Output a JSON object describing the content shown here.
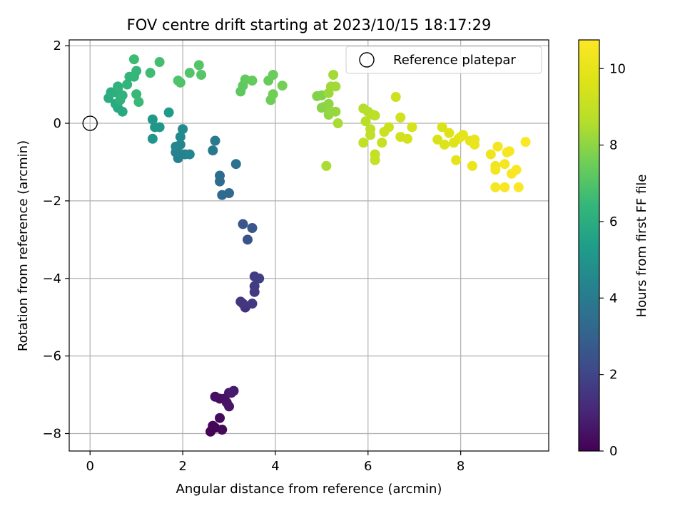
{
  "chart_data": {
    "type": "scatter",
    "title": "FOV centre drift starting at 2023/10/15 18:17:29",
    "xlabel": "Angular distance from reference (arcmin)",
    "ylabel": "Rotation from reference (arcmin)",
    "xlim": [
      -0.45,
      9.9
    ],
    "ylim": [
      -8.45,
      2.15
    ],
    "xticks": [
      0,
      2,
      4,
      6,
      8
    ],
    "yticks": [
      2,
      0,
      -2,
      -4,
      -6,
      -8
    ],
    "grid": true,
    "colormap": "viridis",
    "colorbar": {
      "label": "Hours from first FF file",
      "range": [
        0,
        10.75
      ],
      "ticks": [
        0,
        2,
        4,
        6,
        8,
        10
      ]
    },
    "legend": {
      "placement": "upper right",
      "entries": [
        "Reference platepar"
      ]
    },
    "reference_point": {
      "x": 0,
      "y": 0,
      "name": "Reference platepar"
    },
    "points": [
      {
        "x": 2.6,
        "y": -7.95,
        "c": 0.05
      },
      {
        "x": 2.7,
        "y": -7.85,
        "c": 0.1
      },
      {
        "x": 2.65,
        "y": -7.8,
        "c": 0.15
      },
      {
        "x": 2.85,
        "y": -7.9,
        "c": 0.2
      },
      {
        "x": 2.8,
        "y": -7.6,
        "c": 0.25
      },
      {
        "x": 2.8,
        "y": -7.1,
        "c": 0.35
      },
      {
        "x": 2.7,
        "y": -7.05,
        "c": 0.4
      },
      {
        "x": 2.9,
        "y": -7.1,
        "c": 0.45
      },
      {
        "x": 2.95,
        "y": -7.2,
        "c": 0.5
      },
      {
        "x": 3.0,
        "y": -7.3,
        "c": 0.55
      },
      {
        "x": 3.0,
        "y": -6.95,
        "c": 0.6
      },
      {
        "x": 3.1,
        "y": -6.9,
        "c": 0.65
      },
      {
        "x": 3.05,
        "y": -6.95,
        "c": 0.7
      },
      {
        "x": 3.35,
        "y": -4.75,
        "c": 1.4
      },
      {
        "x": 3.25,
        "y": -4.6,
        "c": 1.5
      },
      {
        "x": 3.3,
        "y": -4.65,
        "c": 1.55
      },
      {
        "x": 3.5,
        "y": -4.65,
        "c": 1.6
      },
      {
        "x": 3.55,
        "y": -4.35,
        "c": 1.65
      },
      {
        "x": 3.55,
        "y": -4.2,
        "c": 1.7
      },
      {
        "x": 3.55,
        "y": -3.95,
        "c": 1.75
      },
      {
        "x": 3.65,
        "y": -4.0,
        "c": 1.8
      },
      {
        "x": 3.4,
        "y": -3.0,
        "c": 2.5
      },
      {
        "x": 3.3,
        "y": -2.6,
        "c": 2.55
      },
      {
        "x": 3.5,
        "y": -2.7,
        "c": 2.6
      },
      {
        "x": 2.85,
        "y": -1.85,
        "c": 3.3
      },
      {
        "x": 3.0,
        "y": -1.8,
        "c": 3.35
      },
      {
        "x": 2.8,
        "y": -1.5,
        "c": 3.4
      },
      {
        "x": 2.8,
        "y": -1.35,
        "c": 3.45
      },
      {
        "x": 3.15,
        "y": -1.05,
        "c": 3.6
      },
      {
        "x": 2.65,
        "y": -0.7,
        "c": 3.9
      },
      {
        "x": 2.7,
        "y": -0.45,
        "c": 3.95
      },
      {
        "x": 1.9,
        "y": -0.9,
        "c": 4.2
      },
      {
        "x": 1.85,
        "y": -0.75,
        "c": 4.25
      },
      {
        "x": 1.95,
        "y": -0.8,
        "c": 4.3
      },
      {
        "x": 2.05,
        "y": -0.8,
        "c": 4.35
      },
      {
        "x": 2.15,
        "y": -0.8,
        "c": 4.4
      },
      {
        "x": 1.85,
        "y": -0.6,
        "c": 4.45
      },
      {
        "x": 1.95,
        "y": -0.55,
        "c": 4.5
      },
      {
        "x": 1.95,
        "y": -0.35,
        "c": 4.55
      },
      {
        "x": 2.0,
        "y": -0.15,
        "c": 4.6
      },
      {
        "x": 1.35,
        "y": -0.4,
        "c": 5.0
      },
      {
        "x": 1.4,
        "y": -0.1,
        "c": 5.05
      },
      {
        "x": 1.5,
        "y": -0.1,
        "c": 5.1
      },
      {
        "x": 1.35,
        "y": 0.1,
        "c": 5.15
      },
      {
        "x": 1.7,
        "y": 0.28,
        "c": 5.3
      },
      {
        "x": 0.6,
        "y": 0.4,
        "c": 5.8
      },
      {
        "x": 0.7,
        "y": 0.3,
        "c": 5.85
      },
      {
        "x": 0.55,
        "y": 0.5,
        "c": 5.9
      },
      {
        "x": 0.4,
        "y": 0.65,
        "c": 5.95
      },
      {
        "x": 0.45,
        "y": 0.8,
        "c": 6.0
      },
      {
        "x": 0.55,
        "y": 0.8,
        "c": 6.05
      },
      {
        "x": 0.6,
        "y": 0.9,
        "c": 6.1
      },
      {
        "x": 0.65,
        "y": 0.6,
        "c": 6.15
      },
      {
        "x": 0.7,
        "y": 0.72,
        "c": 6.2
      },
      {
        "x": 0.6,
        "y": 0.95,
        "c": 6.25
      },
      {
        "x": 0.8,
        "y": 1.0,
        "c": 6.3
      },
      {
        "x": 0.85,
        "y": 1.2,
        "c": 6.35
      },
      {
        "x": 0.95,
        "y": 1.2,
        "c": 6.4
      },
      {
        "x": 1.0,
        "y": 1.35,
        "c": 6.45
      },
      {
        "x": 1.0,
        "y": 0.75,
        "c": 6.5
      },
      {
        "x": 1.05,
        "y": 0.55,
        "c": 6.55
      },
      {
        "x": 0.95,
        "y": 1.65,
        "c": 6.6
      },
      {
        "x": 1.3,
        "y": 1.3,
        "c": 6.65
      },
      {
        "x": 1.5,
        "y": 1.58,
        "c": 6.75
      },
      {
        "x": 1.95,
        "y": 1.05,
        "c": 6.9
      },
      {
        "x": 1.9,
        "y": 1.1,
        "c": 6.95
      },
      {
        "x": 2.15,
        "y": 1.3,
        "c": 7.0
      },
      {
        "x": 2.35,
        "y": 1.5,
        "c": 7.05
      },
      {
        "x": 2.4,
        "y": 1.25,
        "c": 7.1
      },
      {
        "x": 3.25,
        "y": 0.82,
        "c": 7.2
      },
      {
        "x": 3.3,
        "y": 0.97,
        "c": 7.25
      },
      {
        "x": 3.35,
        "y": 1.13,
        "c": 7.3
      },
      {
        "x": 3.5,
        "y": 1.1,
        "c": 7.35
      },
      {
        "x": 3.85,
        "y": 1.1,
        "c": 7.4
      },
      {
        "x": 3.95,
        "y": 1.25,
        "c": 7.45
      },
      {
        "x": 3.9,
        "y": 0.6,
        "c": 7.5
      },
      {
        "x": 3.95,
        "y": 0.75,
        "c": 7.55
      },
      {
        "x": 4.15,
        "y": 0.97,
        "c": 7.6
      },
      {
        "x": 4.9,
        "y": 0.7,
        "c": 7.8
      },
      {
        "x": 5.0,
        "y": 0.72,
        "c": 7.85
      },
      {
        "x": 5.0,
        "y": 0.4,
        "c": 7.9
      },
      {
        "x": 5.05,
        "y": 0.42,
        "c": 7.95
      },
      {
        "x": 5.15,
        "y": 0.5,
        "c": 8.0
      },
      {
        "x": 5.15,
        "y": 0.22,
        "c": 8.05
      },
      {
        "x": 5.2,
        "y": 0.3,
        "c": 8.1
      },
      {
        "x": 5.3,
        "y": 0.3,
        "c": 8.15
      },
      {
        "x": 5.15,
        "y": 0.78,
        "c": 8.2
      },
      {
        "x": 5.2,
        "y": 0.95,
        "c": 8.25
      },
      {
        "x": 5.3,
        "y": 0.95,
        "c": 8.3
      },
      {
        "x": 5.25,
        "y": 1.25,
        "c": 8.35
      },
      {
        "x": 5.35,
        "y": 0.0,
        "c": 8.4
      },
      {
        "x": 5.1,
        "y": -1.1,
        "c": 8.45
      },
      {
        "x": 5.9,
        "y": 0.38,
        "c": 8.6
      },
      {
        "x": 6.0,
        "y": 0.3,
        "c": 8.65
      },
      {
        "x": 5.95,
        "y": 0.05,
        "c": 8.7
      },
      {
        "x": 6.1,
        "y": 0.22,
        "c": 8.75
      },
      {
        "x": 6.15,
        "y": 0.2,
        "c": 8.8
      },
      {
        "x": 6.05,
        "y": -0.15,
        "c": 8.85
      },
      {
        "x": 6.05,
        "y": -0.3,
        "c": 8.9
      },
      {
        "x": 5.9,
        "y": -0.5,
        "c": 8.95
      },
      {
        "x": 6.15,
        "y": -0.8,
        "c": 9.0
      },
      {
        "x": 6.15,
        "y": -0.95,
        "c": 9.05
      },
      {
        "x": 6.3,
        "y": -0.5,
        "c": 9.1
      },
      {
        "x": 6.35,
        "y": -0.22,
        "c": 9.15
      },
      {
        "x": 6.45,
        "y": -0.1,
        "c": 9.2
      },
      {
        "x": 6.6,
        "y": 0.68,
        "c": 9.25
      },
      {
        "x": 6.7,
        "y": 0.15,
        "c": 9.3
      },
      {
        "x": 6.7,
        "y": -0.35,
        "c": 9.35
      },
      {
        "x": 6.85,
        "y": -0.4,
        "c": 9.4
      },
      {
        "x": 6.95,
        "y": -0.1,
        "c": 9.45
      },
      {
        "x": 7.5,
        "y": -0.42,
        "c": 9.55
      },
      {
        "x": 7.6,
        "y": -0.1,
        "c": 9.6
      },
      {
        "x": 7.65,
        "y": -0.55,
        "c": 9.65
      },
      {
        "x": 7.75,
        "y": -0.25,
        "c": 9.7
      },
      {
        "x": 7.85,
        "y": -0.5,
        "c": 9.75
      },
      {
        "x": 7.95,
        "y": -0.4,
        "c": 9.8
      },
      {
        "x": 8.0,
        "y": -0.35,
        "c": 9.85
      },
      {
        "x": 8.05,
        "y": -0.3,
        "c": 9.9
      },
      {
        "x": 7.9,
        "y": -0.95,
        "c": 9.95
      },
      {
        "x": 8.2,
        "y": -0.45,
        "c": 10.0
      },
      {
        "x": 8.3,
        "y": -0.42,
        "c": 10.05
      },
      {
        "x": 8.3,
        "y": -0.55,
        "c": 10.1
      },
      {
        "x": 8.25,
        "y": -1.1,
        "c": 10.15
      },
      {
        "x": 8.65,
        "y": -0.8,
        "c": 10.25
      },
      {
        "x": 8.75,
        "y": -1.1,
        "c": 10.3
      },
      {
        "x": 8.75,
        "y": -1.2,
        "c": 10.35
      },
      {
        "x": 8.8,
        "y": -0.6,
        "c": 10.4
      },
      {
        "x": 8.75,
        "y": -1.65,
        "c": 10.45
      },
      {
        "x": 8.95,
        "y": -1.05,
        "c": 10.5
      },
      {
        "x": 9.0,
        "y": -0.75,
        "c": 10.55
      },
      {
        "x": 9.05,
        "y": -0.72,
        "c": 10.58
      },
      {
        "x": 8.95,
        "y": -1.65,
        "c": 10.6
      },
      {
        "x": 9.1,
        "y": -1.3,
        "c": 10.62
      },
      {
        "x": 9.2,
        "y": -1.2,
        "c": 10.65
      },
      {
        "x": 9.25,
        "y": -1.65,
        "c": 10.68
      },
      {
        "x": 9.4,
        "y": -0.48,
        "c": 10.7
      }
    ]
  }
}
